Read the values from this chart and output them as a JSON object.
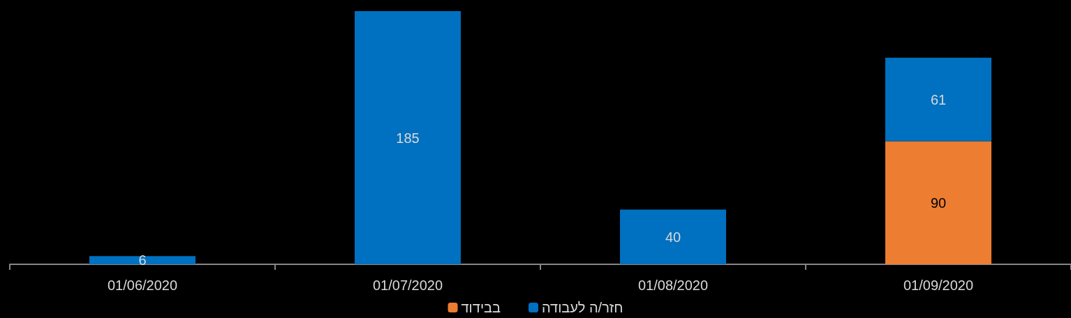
{
  "chart_data": {
    "type": "bar",
    "stacked": true,
    "data_labels": true,
    "legend": "bottom",
    "grid": false,
    "categories": [
      "01/06/2020",
      "01/07/2020",
      "01/08/2020",
      "01/09/2020"
    ],
    "series": [
      {
        "name": "בבידוד",
        "color": "#ed7d31",
        "values": [
          null,
          null,
          null,
          90
        ]
      },
      {
        "name": "חזר/ה לעבודה",
        "color": "#0070c0",
        "values": [
          6,
          185,
          40,
          61
        ]
      }
    ]
  }
}
